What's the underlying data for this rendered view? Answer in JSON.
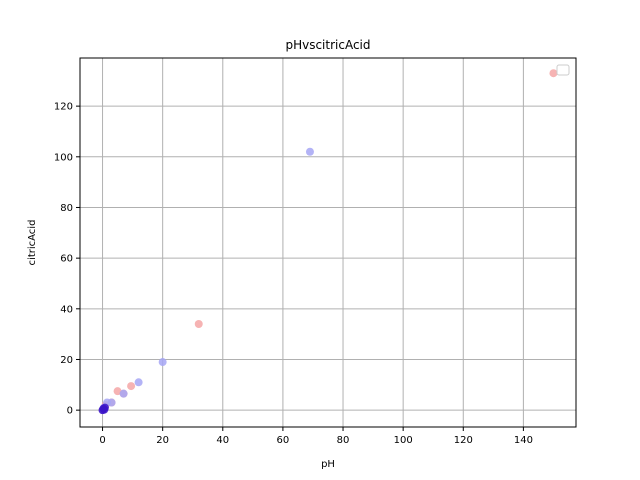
{
  "chart_data": {
    "type": "scatter",
    "title": "pHvscitricAcid",
    "xlabel": "pH",
    "ylabel": "citricAcid",
    "xlim": [
      -7.5,
      157.5
    ],
    "ylim": [
      -6.65,
      139.0
    ],
    "xticks": [
      0,
      20,
      40,
      60,
      80,
      100,
      120,
      140
    ],
    "yticks": [
      0,
      20,
      40,
      60,
      80,
      100,
      120
    ],
    "grid": true,
    "legend": "top-right (empty)",
    "series": [
      {
        "color": "#f4a6a6",
        "points": [
          {
            "x": 150,
            "y": 133
          },
          {
            "x": 32,
            "y": 34
          },
          {
            "x": 9.5,
            "y": 9.5
          },
          {
            "x": 5,
            "y": 7.5
          },
          {
            "x": 3,
            "y": 3
          },
          {
            "x": 7,
            "y": 6.5
          },
          {
            "x": 1,
            "y": 2
          },
          {
            "x": 0.3,
            "y": 0.5
          },
          {
            "x": 0,
            "y": 0
          }
        ]
      },
      {
        "color": "#a6a6f4",
        "points": [
          {
            "x": 69,
            "y": 102
          },
          {
            "x": 20,
            "y": 19
          },
          {
            "x": 12,
            "y": 11
          },
          {
            "x": 7,
            "y": 6.5
          },
          {
            "x": 3,
            "y": 3
          },
          {
            "x": 1.5,
            "y": 3
          },
          {
            "x": 0.5,
            "y": 1
          },
          {
            "x": 0.2,
            "y": 0.3
          },
          {
            "x": 0,
            "y": 0
          }
        ]
      },
      {
        "color": "#3b14c8",
        "points": [
          {
            "x": 0,
            "y": 0
          },
          {
            "x": 0.3,
            "y": 0.6
          },
          {
            "x": 0.8,
            "y": 1
          },
          {
            "x": 0.6,
            "y": 0.2
          }
        ]
      }
    ]
  }
}
